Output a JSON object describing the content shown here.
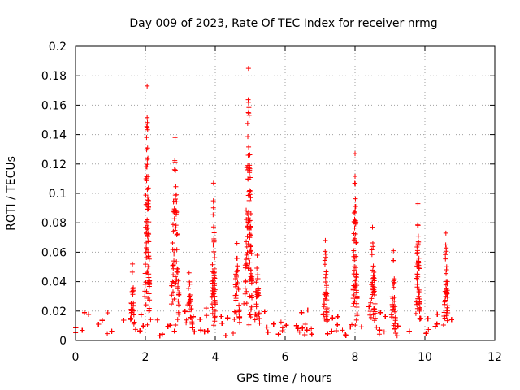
{
  "chart_data": {
    "type": "scatter",
    "title": "Day 009 of 2023, Rate Of TEC Index for receiver nrmg",
    "xlabel": "GPS time / hours",
    "ylabel": "ROTI / TECUs",
    "xlim": [
      0,
      12
    ],
    "ylim": [
      0,
      0.2
    ],
    "x_ticks": [
      0,
      2,
      4,
      6,
      8,
      10,
      12
    ],
    "x_tick_labels": [
      "0",
      "2",
      "4",
      "6",
      "8",
      "10",
      "12"
    ],
    "y_ticks": [
      0,
      0.02,
      0.04,
      0.06,
      0.08,
      0.1,
      0.12,
      0.14,
      0.16,
      0.18,
      0.2
    ],
    "y_tick_labels": [
      "0",
      "0.02",
      "0.04",
      "0.06",
      "0.08",
      "0.1",
      "0.12",
      "0.14",
      "0.16",
      "0.18",
      "0.2"
    ],
    "grid": true,
    "marker": "+",
    "marker_color": "#ff0000",
    "data_range_x": [
      0,
      10.8
    ],
    "series": [
      {
        "name": "ROTI",
        "baseline": {
          "x_start": 0,
          "x_end": 10.8,
          "typical_min": 0.003,
          "typical_max": 0.02
        },
        "bursts": [
          {
            "x": 1.63,
            "width": 0.06,
            "peak": 0.052
          },
          {
            "x": 2.05,
            "width": 0.07,
            "peak": 0.173
          },
          {
            "x": 2.85,
            "width": 0.11,
            "peak": 0.138
          },
          {
            "x": 3.25,
            "width": 0.09,
            "peak": 0.046
          },
          {
            "x": 3.95,
            "width": 0.05,
            "peak": 0.107
          },
          {
            "x": 4.62,
            "width": 0.08,
            "peak": 0.066
          },
          {
            "x": 4.95,
            "width": 0.1,
            "peak": 0.185
          },
          {
            "x": 5.2,
            "width": 0.07,
            "peak": 0.058
          },
          {
            "x": 7.15,
            "width": 0.06,
            "peak": 0.068
          },
          {
            "x": 8.0,
            "width": 0.06,
            "peak": 0.127
          },
          {
            "x": 8.5,
            "width": 0.08,
            "peak": 0.077
          },
          {
            "x": 9.1,
            "width": 0.06,
            "peak": 0.061
          },
          {
            "x": 9.8,
            "width": 0.06,
            "peak": 0.093
          },
          {
            "x": 10.6,
            "width": 0.06,
            "peak": 0.073
          }
        ]
      }
    ]
  }
}
